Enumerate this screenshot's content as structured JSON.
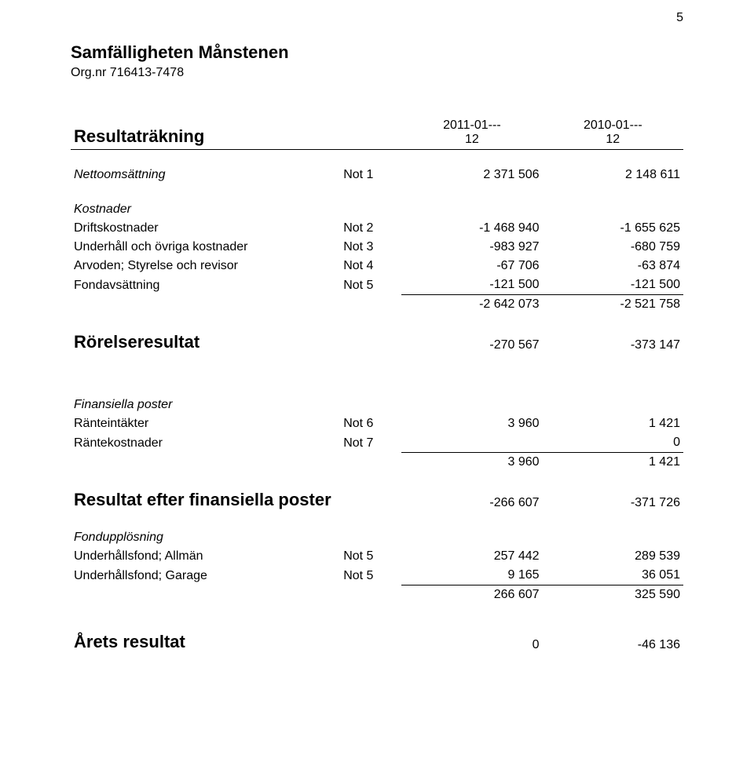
{
  "page_number": "5",
  "org": {
    "name": "Samfälligheten Månstenen",
    "orgnr": "Org.nr 716413-7478"
  },
  "headers": {
    "title": "Resultaträkning",
    "col_a_line1": "2011-01---",
    "col_a_line2": "12",
    "col_b_line1": "2010-01---",
    "col_b_line2": "12"
  },
  "sections": {
    "netto": {
      "label": "Nettoomsättning",
      "note": "Not 1",
      "a": "2 371 506",
      "b": "2 148 611"
    },
    "kostnader_title": "Kostnader",
    "kostnader": [
      {
        "label": "Driftskostnader",
        "note": "Not 2",
        "a": "-1 468 940",
        "b": "-1 655 625"
      },
      {
        "label": "Underhåll och övriga kostnader",
        "note": "Not 3",
        "a": "-983 927",
        "b": "-680 759"
      },
      {
        "label": "Arvoden; Styrelse och revisor",
        "note": "Not 4",
        "a": "-67 706",
        "b": "-63 874"
      },
      {
        "label": "Fondavsättning",
        "note": "Not 5",
        "a": "-121 500",
        "b": "-121 500"
      }
    ],
    "kostnader_sum": {
      "a": "-2 642 073",
      "b": "-2 521 758"
    },
    "rorelse": {
      "label": "Rörelseresultat",
      "a": "-270 567",
      "b": "-373 147"
    },
    "finansiella_title": "Finansiella poster",
    "finansiella": [
      {
        "label": "Ränteintäkter",
        "note": "Not 6",
        "a": "3 960",
        "b": "1 421"
      },
      {
        "label": "Räntekostnader",
        "note": "Not 7",
        "a": "",
        "b": "0"
      }
    ],
    "finansiella_sum": {
      "a": "3 960",
      "b": "1 421"
    },
    "res_fin": {
      "label": "Resultat efter finansiella poster",
      "a": "-266 607",
      "b": "-371 726"
    },
    "fondupp_title": "Fondupplösning",
    "fondupp": [
      {
        "label": "Underhållsfond; Allmän",
        "note": "Not 5",
        "a": "257 442",
        "b": "289 539"
      },
      {
        "label": "Underhållsfond; Garage",
        "note": "Not 5",
        "a": "9 165",
        "b": "36 051"
      }
    ],
    "fondupp_sum": {
      "a": "266 607",
      "b": "325 590"
    },
    "arets": {
      "label": "Årets resultat",
      "a": "0",
      "b": "-46 136"
    }
  }
}
